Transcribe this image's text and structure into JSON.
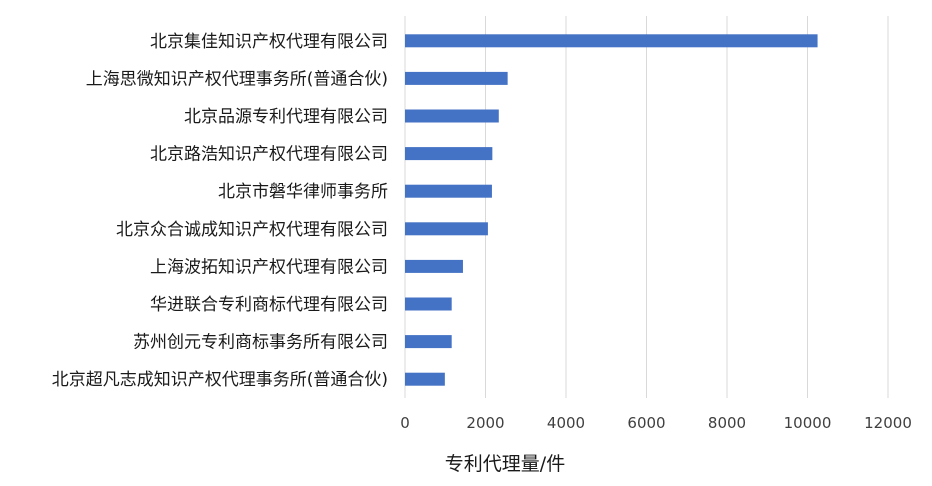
{
  "chart_data": {
    "type": "bar",
    "orientation": "horizontal",
    "categories": [
      "北京集佳知识产权代理有限公司",
      "上海思微知识产权代理事务所(普通合伙)",
      "北京品源专利代理有限公司",
      "北京路浩知识产权代理有限公司",
      "北京市磐华律师事务所",
      "北京众合诚成知识产权代理有限公司",
      "上海波拓知识产权代理有限公司",
      "华进联合专利商标代理有限公司",
      "苏州创元专利商标事务所有限公司",
      "北京超凡志成知识产权代理事务所(普通合伙)"
    ],
    "values": [
      10250,
      2550,
      2330,
      2170,
      2160,
      2060,
      1440,
      1160,
      1160,
      990
    ],
    "xlabel": "专利代理量/件",
    "ylabel": "",
    "xlim": [
      0,
      12000
    ],
    "xticks": [
      "0",
      "2000",
      "4000",
      "6000",
      "8000",
      "10000",
      "12000"
    ],
    "grid": "vertical",
    "bar_color": "#4472c4"
  }
}
